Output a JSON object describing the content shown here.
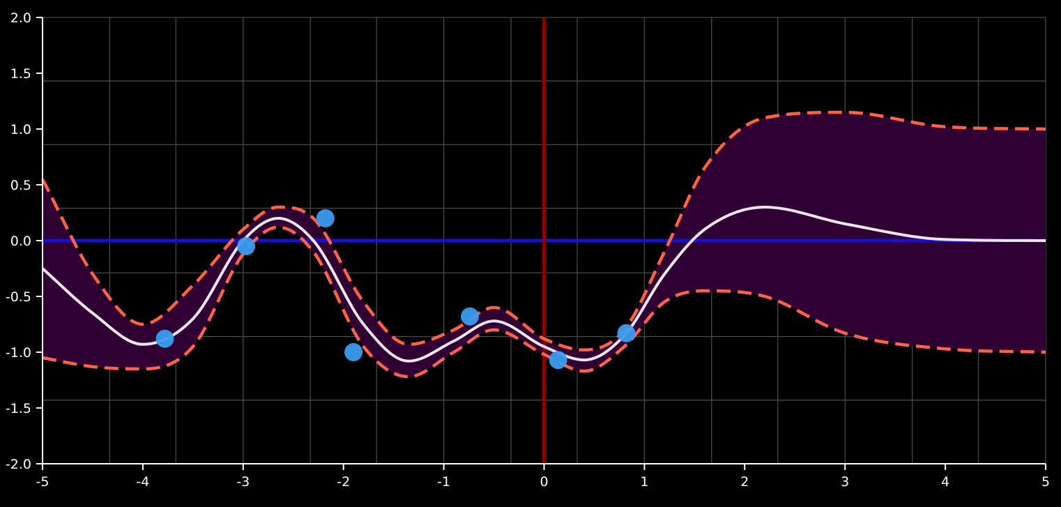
{
  "chart_data": {
    "type": "line",
    "title": "",
    "xlabel": "",
    "ylabel": "",
    "xlim": [
      -5,
      5
    ],
    "ylim": [
      -2,
      2
    ],
    "grid": true,
    "x_ticks": [
      -5,
      -4,
      -3,
      -2,
      -1,
      0,
      1,
      2,
      3,
      4,
      5
    ],
    "x_tick_labels": [
      "-5",
      "-4",
      "-3",
      "-2",
      "-1",
      "0",
      "1",
      "2",
      "3",
      "4",
      "5"
    ],
    "y_ticks": [
      -2,
      -1.5,
      -1,
      -0.5,
      0,
      0.5,
      1,
      1.5,
      2
    ],
    "y_tick_labels": [
      "-2.0",
      "-1.5",
      "-1.0",
      "-0.5",
      "0.0",
      "0.5",
      "1.0",
      "1.5",
      "2.0"
    ],
    "x_grid": [
      -5,
      -4.33,
      -3.67,
      -3,
      -2.33,
      -1.67,
      -1,
      -0.33,
      0.33,
      1,
      1.67,
      2.33,
      3,
      3.67,
      4.33,
      5
    ],
    "y_grid": [
      -2,
      -1.43,
      -0.86,
      -0.29,
      0.29,
      0.86,
      1.43,
      2
    ],
    "x": [
      -5,
      -4.5,
      -4,
      -3.5,
      -3,
      -2.65,
      -2.3,
      -1.8,
      -1.35,
      -0.9,
      -0.5,
      0,
      0.4,
      0.8,
      1.2,
      1.6,
      2.2,
      3,
      4,
      5
    ],
    "series": [
      {
        "role": "mean",
        "values": [
          -0.25,
          -0.65,
          -0.93,
          -0.7,
          0.0,
          0.2,
          0.0,
          -0.75,
          -1.08,
          -0.9,
          -0.72,
          -0.95,
          -1.07,
          -0.85,
          -0.3,
          0.1,
          0.3,
          0.15,
          0.01,
          0.0
        ],
        "color": "#f0e6f2"
      },
      {
        "role": "upper",
        "values": [
          0.55,
          -0.3,
          -0.75,
          -0.4,
          0.1,
          0.3,
          0.2,
          -0.55,
          -0.93,
          -0.8,
          -0.6,
          -0.88,
          -0.98,
          -0.8,
          -0.1,
          0.65,
          1.1,
          1.15,
          1.02,
          1.0
        ],
        "color": "#ff6347"
      },
      {
        "role": "lower",
        "values": [
          -1.05,
          -1.13,
          -1.15,
          -0.95,
          -0.12,
          0.12,
          -0.1,
          -0.95,
          -1.22,
          -1.0,
          -0.8,
          -1.02,
          -1.17,
          -0.95,
          -0.55,
          -0.45,
          -0.5,
          -0.83,
          -0.97,
          -1.0
        ],
        "color": "#ff6347"
      }
    ],
    "band_color": "#310032",
    "zero_line": {
      "y": 0,
      "color": "#1a0fd0"
    },
    "vertical_marker": {
      "x": 0,
      "color": "#8b0000"
    },
    "observations": {
      "color": "#3b9cef",
      "points": [
        {
          "x": -3.78,
          "y": -0.88
        },
        {
          "x": -2.97,
          "y": -0.05
        },
        {
          "x": -2.18,
          "y": 0.2
        },
        {
          "x": -1.9,
          "y": -1.0
        },
        {
          "x": -0.74,
          "y": -0.68
        },
        {
          "x": 0.14,
          "y": -1.07
        },
        {
          "x": 0.82,
          "y": -0.83
        }
      ]
    }
  }
}
